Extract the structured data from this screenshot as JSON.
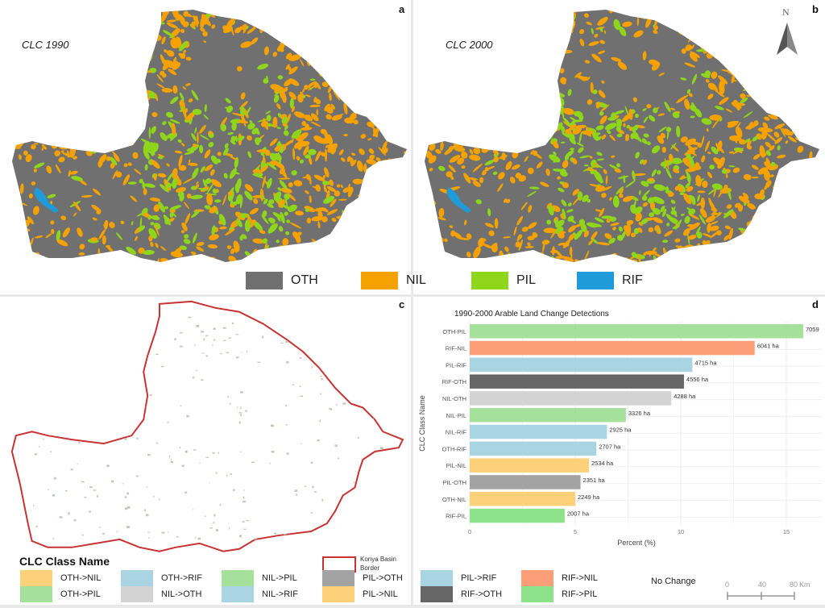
{
  "panels": {
    "a": "a",
    "b": "b",
    "c": "c",
    "d": "d"
  },
  "map_titles": {
    "a": "CLC 1990",
    "b": "CLC 2000"
  },
  "north_label": "N",
  "top_legend": [
    {
      "label": "OTH",
      "color": "#707070"
    },
    {
      "label": "NIL",
      "color": "#f5a200"
    },
    {
      "label": "PIL",
      "color": "#8fd61a"
    },
    {
      "label": "RIF",
      "color": "#1e9bd8"
    }
  ],
  "basin_border_label": "Konya Basin Border",
  "class_legend": {
    "title": "CLC Class Name",
    "items": [
      {
        "label": "OTH->NIL",
        "color": "#fdd07a"
      },
      {
        "label": "OTH->PIL",
        "color": "#a6e19c"
      },
      {
        "label": "OTH->RIF",
        "color": "#a9d4e2"
      },
      {
        "label": "NIL->OTH",
        "color": "#d3d3d3"
      },
      {
        "label": "NIL->PIL",
        "color": "#a6e19c"
      },
      {
        "label": "NIL->RIF",
        "color": "#a9d4e2"
      },
      {
        "label": "PIL->OTH",
        "color": "#a3a3a3"
      },
      {
        "label": "PIL->NIL",
        "color": "#fdd07a"
      },
      {
        "label": "PIL->RIF",
        "color": "#a9d4e2"
      },
      {
        "label": "RIF->OTH",
        "color": "#666666"
      },
      {
        "label": "RIF->NIL",
        "color": "#fc9e78"
      },
      {
        "label": "RIF->PIL",
        "color": "#8ee38a"
      }
    ],
    "no_change": "No Change"
  },
  "scale_bar": {
    "ticks": [
      "0",
      "40",
      "80"
    ],
    "unit": "Km"
  },
  "chart_data": {
    "type": "bar",
    "orientation": "horizontal",
    "title": "1990-2000 Arable Land Change Detections",
    "xlabel": "Percent (%)",
    "ylabel": "CLC Class Name",
    "xlim": [
      0,
      16.5
    ],
    "xticks": [
      "0",
      "5",
      "10",
      "15"
    ],
    "categories": [
      "OTH-PIL",
      "RIF-NIL",
      "PIL-RIF",
      "RIF-OTH",
      "NIL-OTH",
      "NIL-PIL",
      "NIL-RIF",
      "OTH-RIF",
      "PIL-NIL",
      "PIL-OTH",
      "OTH-NIL",
      "RIF-PIL"
    ],
    "values": [
      15.8,
      13.5,
      10.55,
      10.15,
      9.55,
      7.4,
      6.5,
      6.0,
      5.65,
      5.25,
      5.0,
      4.5
    ],
    "labels": [
      "7059",
      "6041 ha",
      "4715 ha",
      "4556 ha",
      "4288 ha",
      "3326 ha",
      "2925 ha",
      "2707 ha",
      "2534 ha",
      "2351 ha",
      "2249 ha",
      "2007 ha"
    ],
    "colors": [
      "#a6e19c",
      "#fc9e78",
      "#a9d4e2",
      "#666666",
      "#d3d3d3",
      "#a6e19c",
      "#a9d4e2",
      "#a9d4e2",
      "#fdd07a",
      "#a3a3a3",
      "#fdd07a",
      "#8ee38a"
    ],
    "grid": true
  }
}
